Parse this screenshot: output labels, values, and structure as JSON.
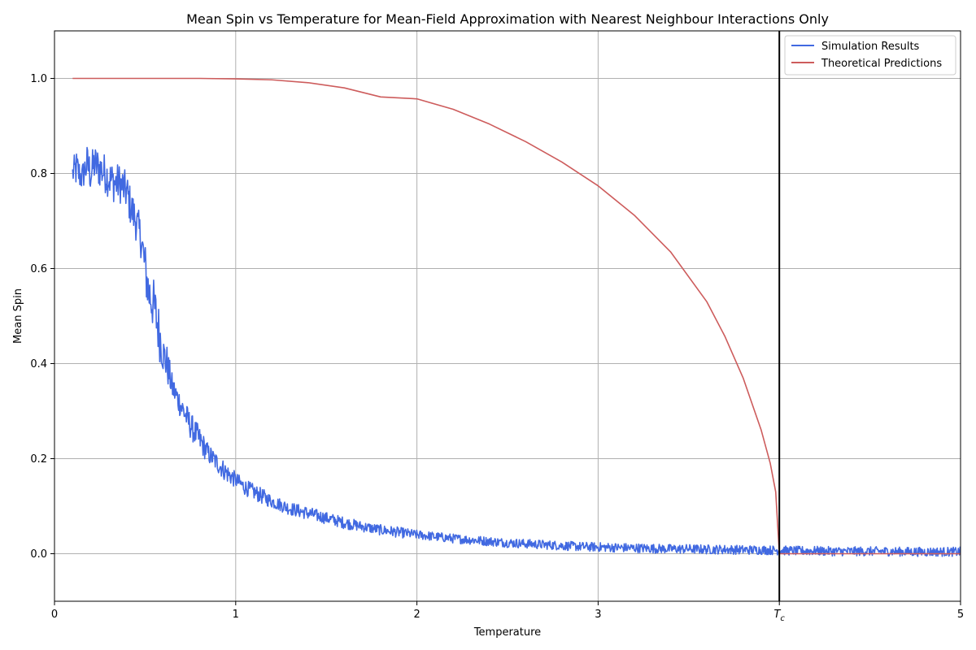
{
  "chart_data": {
    "type": "line",
    "title": "Mean Spin vs Temperature for Mean-Field Approximation with Nearest Neighbour Interactions Only",
    "xlabel": "Temperature",
    "ylabel": "Mean Spin",
    "xlim": [
      0,
      5
    ],
    "ylim": [
      -0.1,
      1.1
    ],
    "x_ticks": [
      {
        "value": 0,
        "label": "0"
      },
      {
        "value": 1,
        "label": "1"
      },
      {
        "value": 2,
        "label": "2"
      },
      {
        "value": 3,
        "label": "3"
      },
      {
        "value": 4,
        "label": "T_c"
      },
      {
        "value": 5,
        "label": "5"
      }
    ],
    "y_ticks": [
      {
        "value": 0.0,
        "label": "0.0"
      },
      {
        "value": 0.2,
        "label": "0.2"
      },
      {
        "value": 0.4,
        "label": "0.4"
      },
      {
        "value": 0.6,
        "label": "0.6"
      },
      {
        "value": 0.8,
        "label": "0.8"
      },
      {
        "value": 1.0,
        "label": "1.0"
      }
    ],
    "grid": true,
    "legend_position": "top-right",
    "vertical_line": {
      "x": 4,
      "color": "#000000"
    },
    "series": [
      {
        "name": "Simulation Results",
        "color": "#4169e1",
        "x": [
          0.1,
          0.12,
          0.15,
          0.18,
          0.2,
          0.22,
          0.25,
          0.28,
          0.3,
          0.33,
          0.36,
          0.4,
          0.42,
          0.45,
          0.48,
          0.5,
          0.52,
          0.55,
          0.58,
          0.6,
          0.62,
          0.65,
          0.7,
          0.75,
          0.8,
          0.85,
          0.9,
          0.95,
          1.0,
          1.05,
          1.1,
          1.15,
          1.2,
          1.3,
          1.4,
          1.5,
          1.6,
          1.7,
          1.8,
          1.9,
          2.0,
          2.1,
          2.2,
          2.3,
          2.4,
          2.5,
          2.6,
          2.7,
          2.8,
          2.9,
          3.0,
          3.1,
          3.2,
          3.3,
          3.4,
          3.5,
          3.6,
          3.7,
          3.8,
          3.9,
          4.0,
          4.1,
          4.2,
          4.3,
          4.4,
          4.5,
          4.6,
          4.7,
          4.8,
          4.9,
          5.0
        ],
        "y": [
          0.8,
          0.81,
          0.79,
          0.82,
          0.8,
          0.82,
          0.81,
          0.8,
          0.79,
          0.78,
          0.78,
          0.76,
          0.73,
          0.7,
          0.66,
          0.6,
          0.55,
          0.52,
          0.46,
          0.42,
          0.4,
          0.35,
          0.31,
          0.27,
          0.24,
          0.21,
          0.19,
          0.17,
          0.155,
          0.14,
          0.13,
          0.12,
          0.11,
          0.095,
          0.085,
          0.075,
          0.065,
          0.057,
          0.05,
          0.045,
          0.04,
          0.036,
          0.032,
          0.029,
          0.026,
          0.023,
          0.021,
          0.019,
          0.017,
          0.015,
          0.014,
          0.013,
          0.012,
          0.011,
          0.01,
          0.01,
          0.009,
          0.009,
          0.008,
          0.008,
          0.007,
          0.006,
          0.006,
          0.005,
          0.005,
          0.005,
          0.005,
          0.004,
          0.004,
          0.004,
          0.004
        ],
        "noise": [
          0.02,
          0.03,
          0.02,
          0.03,
          0.03,
          0.03,
          0.03,
          0.03,
          0.03,
          0.03,
          0.03,
          0.03,
          0.03,
          0.03,
          0.03,
          0.04,
          0.04,
          0.04,
          0.04,
          0.03,
          0.03,
          0.02,
          0.02,
          0.02,
          0.02,
          0.015,
          0.015,
          0.015,
          0.012,
          0.012,
          0.012,
          0.012,
          0.01,
          0.01,
          0.01,
          0.009,
          0.009,
          0.008,
          0.008,
          0.008,
          0.007,
          0.007,
          0.007,
          0.007,
          0.007,
          0.007,
          0.007,
          0.007,
          0.007,
          0.007,
          0.007,
          0.007,
          0.007,
          0.007,
          0.007,
          0.007,
          0.007,
          0.007,
          0.007,
          0.007,
          0.007,
          0.007,
          0.007,
          0.007,
          0.007,
          0.007,
          0.007,
          0.007,
          0.007,
          0.007,
          0.007
        ]
      },
      {
        "name": "Theoretical Predictions",
        "color": "#cd5c5c",
        "x": [
          0.1,
          0.5,
          0.8,
          1.0,
          1.2,
          1.4,
          1.6,
          1.8,
          2.0,
          2.2,
          2.4,
          2.6,
          2.8,
          3.0,
          3.2,
          3.4,
          3.6,
          3.7,
          3.8,
          3.9,
          3.95,
          3.98,
          4.0,
          4.05,
          4.2,
          4.4,
          4.6,
          4.8,
          5.0
        ],
        "y": [
          1.0,
          1.0,
          1.0,
          0.999,
          0.997,
          0.991,
          0.98,
          0.961,
          0.957,
          0.935,
          0.904,
          0.867,
          0.824,
          0.774,
          0.712,
          0.635,
          0.53,
          0.457,
          0.37,
          0.26,
          0.19,
          0.13,
          0.0,
          0.0,
          0.0,
          0.0,
          0.0,
          0.0,
          0.0
        ]
      }
    ]
  }
}
